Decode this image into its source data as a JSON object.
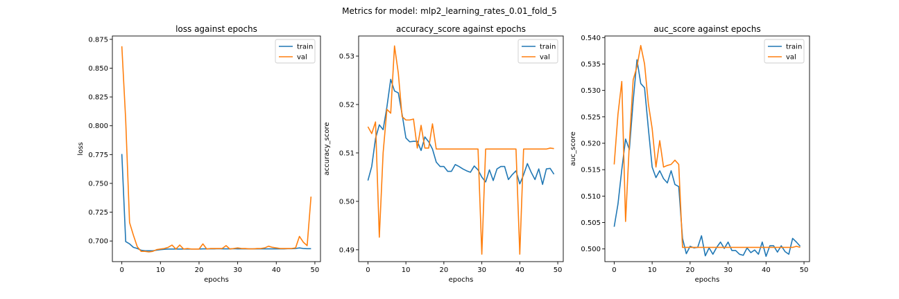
{
  "suptitle": "Metrics for model: mlp2_learning_rates_0.01_fold_5",
  "colors": {
    "train": "#1f77b4",
    "val": "#ff7f0e",
    "axis": "#000000",
    "legend_border": "#cccccc"
  },
  "chart_data": [
    {
      "type": "line",
      "title": "loss against epochs",
      "xlabel": "epochs",
      "ylabel": "loss",
      "xlim": [
        -2.45,
        51.45
      ],
      "ylim": [
        0.6821,
        0.8779
      ],
      "xticks": [
        0,
        10,
        20,
        30,
        40,
        50
      ],
      "yticks": [
        0.7,
        0.725,
        0.75,
        0.775,
        0.8,
        0.825,
        0.85,
        0.875
      ],
      "ytick_labels": [
        "0.700",
        "0.725",
        "0.750",
        "0.775",
        "0.800",
        "0.825",
        "0.850",
        "0.875"
      ],
      "legend": "top-right",
      "grid": false,
      "series": [
        {
          "name": "train",
          "values": [
            0.7755,
            0.6995,
            0.6975,
            0.6945,
            0.6935,
            0.692,
            0.6915,
            0.6915,
            0.6915,
            0.692,
            0.6925,
            0.6928,
            0.693,
            0.693,
            0.693,
            0.693,
            0.693,
            0.693,
            0.693,
            0.693,
            0.693,
            0.6932,
            0.6932,
            0.6932,
            0.6932,
            0.6933,
            0.6932,
            0.6932,
            0.6932,
            0.6933,
            0.6932,
            0.6932,
            0.6932,
            0.6932,
            0.6932,
            0.6932,
            0.6932,
            0.6932,
            0.6932,
            0.6932,
            0.6932,
            0.6932,
            0.6932,
            0.6933,
            0.6933,
            0.6935,
            0.694,
            0.6935,
            0.6933,
            0.6933
          ]
        },
        {
          "name": "val",
          "values": [
            0.869,
            0.805,
            0.716,
            0.705,
            0.695,
            0.691,
            0.691,
            0.6905,
            0.691,
            0.6925,
            0.693,
            0.6935,
            0.6945,
            0.6965,
            0.693,
            0.6965,
            0.693,
            0.6935,
            0.693,
            0.693,
            0.693,
            0.6975,
            0.693,
            0.6935,
            0.6935,
            0.6935,
            0.6935,
            0.696,
            0.693,
            0.6935,
            0.694,
            0.6935,
            0.6935,
            0.6932,
            0.6932,
            0.6935,
            0.6935,
            0.694,
            0.6955,
            0.6945,
            0.694,
            0.6935,
            0.6935,
            0.6935,
            0.6935,
            0.694,
            0.704,
            0.699,
            0.696,
            0.7385
          ]
        }
      ]
    },
    {
      "type": "line",
      "title": "accuracy_score against epochs",
      "xlabel": "epochs",
      "ylabel": "accuracy_score",
      "xlim": [
        -2.45,
        51.45
      ],
      "ylim": [
        0.48755,
        0.53415
      ],
      "xticks": [
        0,
        10,
        20,
        30,
        40,
        50
      ],
      "yticks": [
        0.49,
        0.5,
        0.51,
        0.52,
        0.53
      ],
      "ytick_labels": [
        "0.49",
        "0.50",
        "0.51",
        "0.52",
        "0.53"
      ],
      "legend": "top-right",
      "grid": false,
      "series": [
        {
          "name": "train",
          "values": [
            0.5043,
            0.5072,
            0.513,
            0.5158,
            0.5148,
            0.5195,
            0.5252,
            0.5228,
            0.5224,
            0.518,
            0.5131,
            0.5123,
            0.5124,
            0.5124,
            0.5105,
            0.5133,
            0.5123,
            0.5108,
            0.5081,
            0.5072,
            0.5072,
            0.5062,
            0.5062,
            0.5076,
            0.5072,
            0.5067,
            0.5063,
            0.506,
            0.5073,
            0.5065,
            0.505,
            0.504,
            0.5065,
            0.5043,
            0.5067,
            0.5072,
            0.5072,
            0.5045,
            0.5055,
            0.5063,
            0.5036,
            0.5055,
            0.5078,
            0.506,
            0.5045,
            0.5067,
            0.5035,
            0.5067,
            0.5068,
            0.5056
          ]
        },
        {
          "name": "val",
          "values": [
            0.5154,
            0.514,
            0.5164,
            0.4926,
            0.51,
            0.519,
            0.5182,
            0.5321,
            0.5265,
            0.5175,
            0.5168,
            0.5168,
            0.517,
            0.511,
            0.5157,
            0.511,
            0.511,
            0.516,
            0.5108,
            0.5108,
            0.5108,
            0.5108,
            0.5108,
            0.5108,
            0.5108,
            0.5108,
            0.5108,
            0.5108,
            0.5108,
            0.5108,
            0.4891,
            0.5108,
            0.5108,
            0.5108,
            0.5108,
            0.5108,
            0.5108,
            0.5108,
            0.5108,
            0.5108,
            0.4891,
            0.5108,
            0.5108,
            0.5108,
            0.5108,
            0.5108,
            0.5108,
            0.5108,
            0.511,
            0.5109
          ]
        }
      ]
    },
    {
      "type": "line",
      "title": "auc_score against epochs",
      "xlabel": "epochs",
      "ylabel": "auc_score",
      "xlim": [
        -2.45,
        51.45
      ],
      "ylim": [
        0.4976,
        0.5403
      ],
      "xticks": [
        0,
        10,
        20,
        30,
        40,
        50
      ],
      "yticks": [
        0.5,
        0.505,
        0.51,
        0.515,
        0.52,
        0.525,
        0.53,
        0.535,
        0.54
      ],
      "ytick_labels": [
        "0.500",
        "0.505",
        "0.510",
        "0.515",
        "0.520",
        "0.525",
        "0.530",
        "0.535",
        "0.540"
      ],
      "legend": "top-right",
      "grid": false,
      "series": [
        {
          "name": "train",
          "values": [
            0.5042,
            0.5085,
            0.515,
            0.5208,
            0.5188,
            0.528,
            0.5358,
            0.5313,
            0.5305,
            0.5228,
            0.5155,
            0.5135,
            0.5148,
            0.5133,
            0.5125,
            0.5148,
            0.5122,
            0.5118,
            0.502,
            0.4991,
            0.5005,
            0.5002,
            0.5003,
            0.5025,
            0.4987,
            0.5002,
            0.499,
            0.5003,
            0.5013,
            0.5001,
            0.5013,
            0.4997,
            0.4997,
            0.499,
            0.4988,
            0.5002,
            0.4993,
            0.4998,
            0.499,
            0.5013,
            0.4986,
            0.5006,
            0.5006,
            0.4994,
            0.5006,
            0.4995,
            0.499,
            0.502,
            0.5013,
            0.5005
          ]
        },
        {
          "name": "val",
          "values": [
            0.516,
            0.5255,
            0.5317,
            0.5052,
            0.52,
            0.532,
            0.5345,
            0.5385,
            0.535,
            0.5275,
            0.5228,
            0.5155,
            0.5205,
            0.5155,
            0.5158,
            0.516,
            0.5168,
            0.516,
            0.5003,
            0.5003,
            0.5003,
            0.5003,
            0.5003,
            0.5003,
            0.5003,
            0.5003,
            0.5003,
            0.5003,
            0.5003,
            0.5003,
            0.5003,
            0.5003,
            0.5003,
            0.5003,
            0.5003,
            0.5003,
            0.5003,
            0.5003,
            0.5003,
            0.5003,
            0.5003,
            0.5003,
            0.5003,
            0.5003,
            0.5003,
            0.5003,
            0.5003,
            0.5003,
            0.5005,
            0.5003
          ]
        }
      ]
    }
  ]
}
